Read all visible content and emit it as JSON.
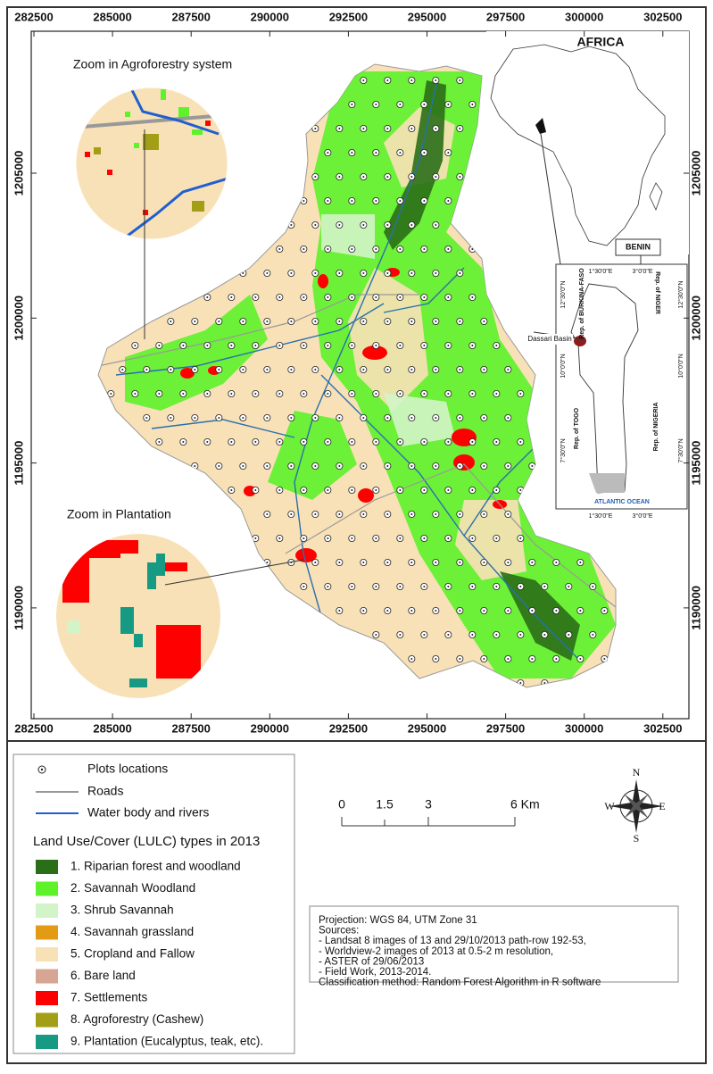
{
  "map": {
    "x_ticks": [
      282500,
      285000,
      287500,
      290000,
      292500,
      295000,
      297500,
      300000,
      302500
    ],
    "y_ticks": [
      1190000,
      1195000,
      1200000,
      1205000
    ],
    "zoom_agroforestry_title": "Zoom in Agroforestry system",
    "zoom_plantation_title": "Zoom in Plantation",
    "inset": {
      "africa_title": "AFRICA",
      "benin_title": "BENIN",
      "lon_labels": [
        "1°30'0\"E",
        "3°0'0\"E"
      ],
      "lat_labels": [
        "12°30'0\"N",
        "10°0'0\"N",
        "7°30'0\"N"
      ],
      "burkina": "Rep. of BURKINA-FASO",
      "niger": "Rep. of NIGER",
      "togo": "Rep. of TOGO",
      "nigeria": "Rep. of NIGERIA",
      "ocean": "ATLANTIC OCEAN",
      "basin_label": "Dassari Basin"
    }
  },
  "legend": {
    "point_items": [
      "Plots locations",
      "Roads",
      "Water body and rivers"
    ],
    "lulc_title": "Land Use/Cover (LULC) types in 2013",
    "lulc_items": [
      {
        "label": "1. Riparian forest and woodland",
        "color": "#2b6e18"
      },
      {
        "label": "2. Savannah Woodland",
        "color": "#5df22a"
      },
      {
        "label": "3. Shrub Savannah",
        "color": "#d3f4c8"
      },
      {
        "label": "4. Savannah grassland",
        "color": "#e39b16"
      },
      {
        "label": "5. Cropland and Fallow",
        "color": "#f8e1b6"
      },
      {
        "label": "6. Bare land",
        "color": "#d6a593"
      },
      {
        "label": "7. Settlements",
        "color": "#ff0000"
      },
      {
        "label": "8. Agroforestry (Cashew)",
        "color": "#a29f16"
      },
      {
        "label": "9. Plantation (Eucalyptus, teak, etc).",
        "color": "#169a84"
      }
    ]
  },
  "scale_bar": {
    "labels": [
      "0",
      "1.5",
      "3",
      "6 Km"
    ]
  },
  "compass": {
    "n": "N",
    "s": "S",
    "e": "E",
    "w": "W"
  },
  "notes": [
    "Projection: WGS 84, UTM Zone 31",
    "Sources:",
    "- Landsat 8 images of 13 and 29/10/2013 path-row 192-53,",
    "- Worldview-2 images of 2013 at 0.5-2 m resolution,",
    "- ASTER of 29/06/2013",
    "- Field Work, 2013-2014.",
    "Classification method: Random Forest Algorithm in R software"
  ]
}
